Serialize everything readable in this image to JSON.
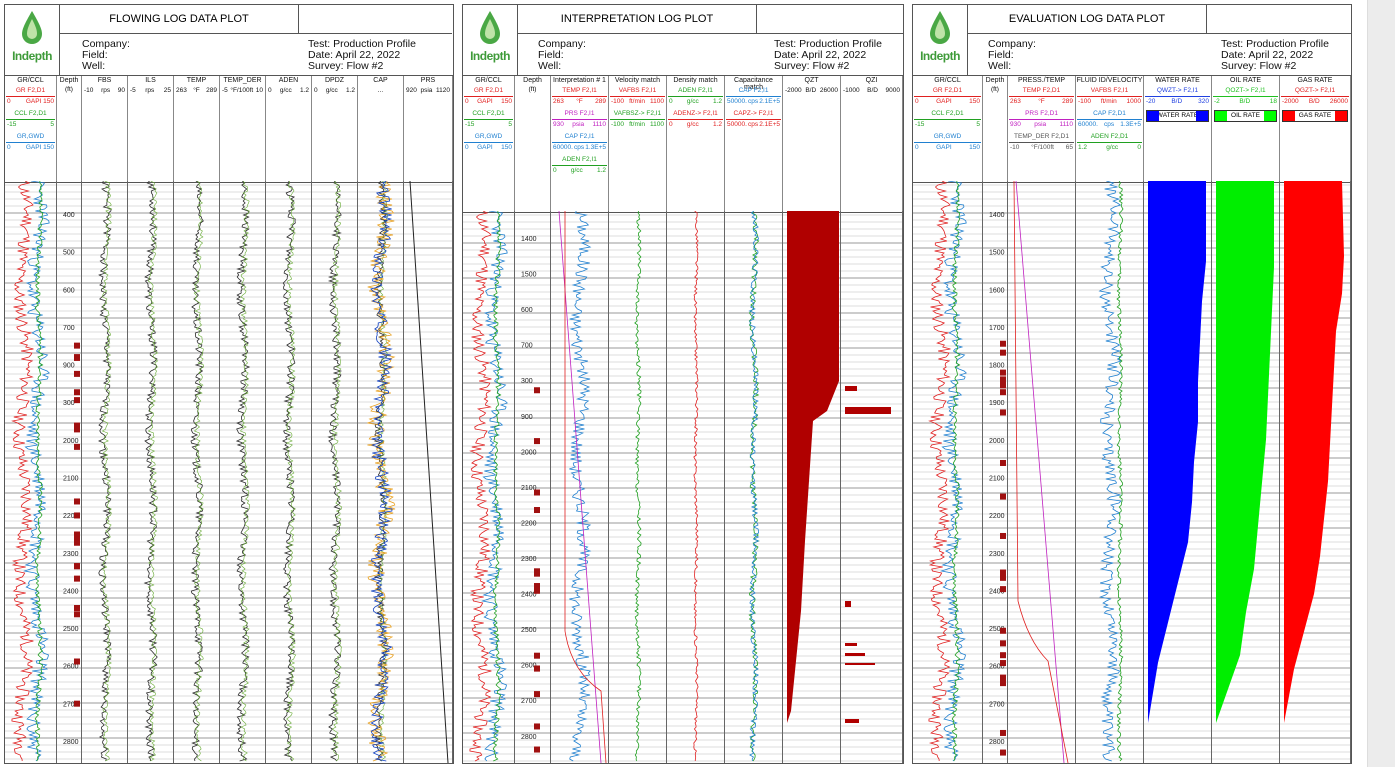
{
  "logo": {
    "text": "Indepth"
  },
  "meta_labels": {
    "company": "Company:",
    "field": "Field:",
    "well": "Well:"
  },
  "panels": [
    {
      "title": "FLOWING LOG DATA PLOT",
      "test": "Test: Production Profile",
      "date": "Date: April 22, 2022",
      "survey": "Survey: Flow #2",
      "field_value": "Field",
      "depth_header": "Depth",
      "depth_unit": "(ft)",
      "depth_labels": [
        "400",
        "500",
        "600",
        "700",
        "900",
        "300",
        "2000",
        "2100",
        "2200",
        "2300",
        "2400",
        "2500",
        "2600",
        "2700",
        "2800"
      ],
      "columns": [
        {
          "title": "GR/CCL",
          "curves": [
            {
              "label": "GR  F2,D1",
              "color": "#e02020",
              "scale": [
                "0",
                "GAPI 150"
              ]
            },
            {
              "label": "CCL  F2,D1",
              "color": "#20a020",
              "scale": [
                "-15",
                "5"
              ]
            },
            {
              "label": "GR,GWD",
              "color": "#2080d0",
              "scale": [
                "0",
                "GAPI 150"
              ]
            }
          ]
        },
        {
          "title": "FBS",
          "curves": [
            {
              "label": "",
              "color": "#111",
              "scale": [
                "-10",
                "rps",
                "90"
              ]
            }
          ]
        },
        {
          "title": "ILS",
          "curves": [
            {
              "label": "",
              "color": "#111",
              "scale": [
                "-5",
                "rps",
                "25"
              ]
            }
          ]
        },
        {
          "title": "TEMP",
          "curves": [
            {
              "label": "",
              "color": "#111",
              "scale": [
                "263",
                "°F",
                "289"
              ]
            }
          ]
        },
        {
          "title": "TEMP_DER",
          "curves": [
            {
              "label": "",
              "color": "#111",
              "scale": [
                "-5",
                "°F/100ft",
                "10"
              ]
            }
          ]
        },
        {
          "title": "ADEN",
          "curves": [
            {
              "label": "",
              "color": "#111",
              "scale": [
                "0",
                "g/cc",
                "1.2"
              ]
            }
          ]
        },
        {
          "title": "DPDZ",
          "curves": [
            {
              "label": "",
              "color": "#111",
              "scale": [
                "0",
                "g/cc",
                "1.2"
              ]
            }
          ]
        },
        {
          "title": "CAP",
          "curves": [
            {
              "label": "",
              "color": "#111",
              "scale": [
                "",
                "...",
                ""
              ]
            }
          ]
        },
        {
          "title": "PRS",
          "curves": [
            {
              "label": "",
              "color": "#111",
              "scale": [
                "920",
                "psia",
                "1120"
              ]
            }
          ]
        }
      ]
    },
    {
      "title": "INTERPRETATION LOG PLOT",
      "test": "Test: Production Profile",
      "date": "Date: April 22, 2022",
      "survey": "Survey: Flow #2",
      "field_value": "",
      "depth_header": "Depth",
      "depth_unit": "(ft)",
      "depth_labels": [
        "1400",
        "1500",
        "600",
        "700",
        "300",
        "900",
        "2000",
        "2100",
        "2200",
        "2300",
        "2400",
        "2500",
        "2600",
        "2700",
        "2800"
      ],
      "columns": [
        {
          "title": "GR/CCL",
          "curves": [
            {
              "label": "GR  F2,D1",
              "color": "#e02020",
              "scale": [
                "0",
                "GAPI",
                "150"
              ]
            },
            {
              "label": "CCL  F2,D1",
              "color": "#20a020",
              "scale": [
                "-15",
                "5"
              ]
            },
            {
              "label": "GR,GWD",
              "color": "#2080d0",
              "scale": [
                "0",
                "GAPI",
                "150"
              ]
            }
          ]
        },
        {
          "title": "Interpretation # 1",
          "curves": [
            {
              "label": "TEMP  F2,I1",
              "color": "#e02020",
              "scale": [
                "263",
                "°F",
                "289"
              ]
            },
            {
              "label": "PRS  F2,I1",
              "color": "#c020c0",
              "scale": [
                "930",
                "psia",
                "1110"
              ]
            },
            {
              "label": "CAP  F2,I1",
              "color": "#2080d0",
              "scale": [
                "60000.",
                "cps",
                "1.3E+5"
              ]
            },
            {
              "label": "ADEN  F2,I1",
              "color": "#20a020",
              "scale": [
                "0",
                "g/cc",
                "1.2"
              ]
            }
          ]
        },
        {
          "title": "Velocity match",
          "curves": [
            {
              "label": "VAFBS  F2,I1",
              "color": "#e02020",
              "scale": [
                "-100",
                "ft/min",
                "1100"
              ]
            },
            {
              "label": "VAFBSZ-> F2,I1",
              "color": "#20a020",
              "scale": [
                "-100",
                "ft/min",
                "1100"
              ]
            }
          ]
        },
        {
          "title": "Density match",
          "curves": [
            {
              "label": "ADEN  F2,I1",
              "color": "#20a020",
              "scale": [
                "0",
                "g/cc",
                "1.2"
              ]
            },
            {
              "label": "ADENZ-> F2,I1",
              "color": "#e02020",
              "scale": [
                "0",
                "g/cc",
                "1.2"
              ]
            }
          ]
        },
        {
          "title": "Capacitance match",
          "curves": [
            {
              "label": "CAP  F2,I1",
              "color": "#2080d0",
              "scale": [
                "50000.",
                "cps",
                "2.1E+5"
              ]
            },
            {
              "label": "CAPZ-> F2,I1",
              "color": "#e02020",
              "scale": [
                "50000.",
                "cps",
                "2.1E+5"
              ]
            }
          ]
        },
        {
          "title": "QZT",
          "curves": [
            {
              "label": "",
              "color": "#111",
              "scale": [
                "-2000",
                "B/D",
                "26000"
              ]
            }
          ]
        },
        {
          "title": "QZI",
          "curves": [
            {
              "label": "",
              "color": "#111",
              "scale": [
                "-1000",
                "B/D",
                "9000"
              ]
            }
          ]
        }
      ]
    },
    {
      "title": "EVALUATION LOG DATA PLOT",
      "test": "Test: Production Profile",
      "date": "Date: April 22, 2022",
      "survey": "Survey: Flow #2",
      "field_value": "",
      "depth_header": "Depth",
      "depth_unit": "(ft)",
      "depth_labels": [
        "1400",
        "1500",
        "1600",
        "1700",
        "1800",
        "1900",
        "2000",
        "2100",
        "2200",
        "2300",
        "2400",
        "2500",
        "2600",
        "2700",
        "2800"
      ],
      "columns": [
        {
          "title": "GR/CCL",
          "curves": [
            {
              "label": "GR  F2,D1",
              "color": "#e02020",
              "scale": [
                "0",
                "GAPI",
                "150"
              ]
            },
            {
              "label": "CCL  F2,D1",
              "color": "#20a020",
              "scale": [
                "-15",
                "5"
              ]
            },
            {
              "label": "GR,GWD",
              "color": "#2080d0",
              "scale": [
                "0",
                "GAPI",
                "150"
              ]
            }
          ]
        },
        {
          "title": "PRESS./TEMP",
          "curves": [
            {
              "label": "TEMP  F2,D1",
              "color": "#e02020",
              "scale": [
                "263",
                "°F",
                "289"
              ]
            },
            {
              "label": "PRS  F2,D1",
              "color": "#c020c0",
              "scale": [
                "930",
                "psia",
                "1110"
              ]
            },
            {
              "label": "TEMP_DER  F2,D1",
              "color": "#555",
              "scale": [
                "-10",
                "°F/100ft",
                "65"
              ]
            }
          ]
        },
        {
          "title": "FLUID ID/VELOCITY",
          "curves": [
            {
              "label": "VAFBS  F2,I1",
              "color": "#e02020",
              "scale": [
                "-100",
                "ft/min",
                "1000"
              ]
            },
            {
              "label": "CAP  F2,D1",
              "color": "#2080d0",
              "scale": [
                "60000.",
                "cps",
                "1.3E+5"
              ]
            },
            {
              "label": "ADEN  F2,D1",
              "color": "#20a020",
              "scale": [
                "1.2",
                "g/cc",
                "0"
              ]
            }
          ]
        },
        {
          "title": "WATER RATE",
          "curves": [
            {
              "label": "QWZT-> F2,I1",
              "color": "#2040e0",
              "scale": [
                "-20",
                "B/D",
                "320"
              ]
            }
          ],
          "legend": {
            "text": "WATER RATE",
            "color": "#0000ff"
          }
        },
        {
          "title": "OIL RATE",
          "curves": [
            {
              "label": "QOZT-> F2,I1",
              "color": "#20c020",
              "scale": [
                "-2",
                "B/D",
                "18"
              ]
            }
          ],
          "legend": {
            "text": "OIL RATE",
            "color": "#00ff00"
          }
        },
        {
          "title": "GAS RATE",
          "curves": [
            {
              "label": "QGZT-> F2,I1",
              "color": "#e02020",
              "scale": [
                "-2000",
                "B/D",
                "26000"
              ]
            }
          ],
          "legend": {
            "text": "GAS RATE",
            "color": "#ff0000"
          }
        }
      ]
    }
  ],
  "colors": {
    "water": "#0000ff",
    "oil": "#00ee00",
    "gas": "#ff0000",
    "qzt": "#b00000",
    "marker": "#a01010"
  }
}
